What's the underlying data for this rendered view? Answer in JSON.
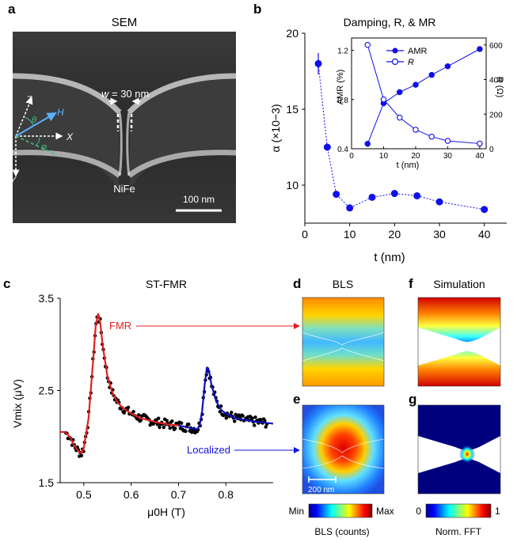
{
  "panel_labels": {
    "a": "a",
    "b": "b",
    "c": "c",
    "d": "d",
    "e": "e",
    "f": "f",
    "g": "g"
  },
  "sem": {
    "title": "SEM",
    "width_prefix": "w",
    "width_value": " = 30 nm",
    "axis_z": "Z",
    "axis_x": "X",
    "axis_y": "Y",
    "axis_h": "H",
    "theta": "θ",
    "phi": "φ",
    "material": "NiFe",
    "scale_bar": "100 nm"
  },
  "bls": {
    "title": "BLS",
    "scale_bar": "200 nm"
  },
  "simulation": {
    "title": "Simulation"
  },
  "colorbar_bls": {
    "min": "Min",
    "max": "Max",
    "label": "BLS (counts)"
  },
  "colorbar_sim": {
    "min": "0",
    "max": "1",
    "label": "Norm. FFT"
  },
  "chart_data": [
    {
      "id": "damping",
      "type": "scatter",
      "title": "Damping, R, & MR",
      "xlabel": "t (nm)",
      "ylabel": "α (×10−3)",
      "xlim": [
        0,
        45
      ],
      "ylim": [
        7.5,
        20
      ],
      "xticks": [
        0,
        10,
        20,
        30,
        40
      ],
      "yticks": [
        10,
        15,
        20
      ],
      "x": [
        3,
        5,
        7,
        10,
        15,
        20,
        25,
        30,
        40
      ],
      "y": [
        18.0,
        12.5,
        9.4,
        8.5,
        9.2,
        9.45,
        9.3,
        8.9,
        8.4
      ],
      "error": [
        0.7,
        0,
        0,
        0,
        0,
        0,
        0,
        0,
        0
      ],
      "color": "#1010e8"
    },
    {
      "id": "inset",
      "type": "line",
      "xlabel": "t (nm)",
      "ylabel_left": "AMR (%)",
      "ylabel_right": "R (Ω)",
      "xlim": [
        0,
        42
      ],
      "ylim_left": [
        0.4,
        1.3
      ],
      "ylim_right": [
        0,
        640
      ],
      "xticks": [
        0,
        10,
        20,
        30,
        40
      ],
      "yticks_left": [
        "0.4",
        "0.8",
        "1.2"
      ],
      "yticks_right": [
        "0",
        "200",
        "400",
        "600"
      ],
      "series": [
        {
          "name": "AMR",
          "axis": "left",
          "filled": true,
          "x": [
            5,
            10,
            15,
            20,
            25,
            30,
            40
          ],
          "y": [
            0.44,
            0.77,
            0.86,
            0.92,
            1.0,
            1.07,
            1.21
          ]
        },
        {
          "name": "R",
          "axis": "right",
          "filled": false,
          "x": [
            5,
            10,
            15,
            20,
            25,
            30,
            40
          ],
          "y": [
            600,
            285,
            180,
            110,
            70,
            45,
            30
          ]
        }
      ]
    },
    {
      "id": "stfmr",
      "type": "line",
      "title": "ST-FMR",
      "xlabel": "μ0H (T)",
      "ylabel": "Vmix (μV)",
      "xlim": [
        0.45,
        0.9
      ],
      "ylim": [
        1.5,
        3.5
      ],
      "xticks": [
        "0.5",
        "0.6",
        "0.7",
        "0.8"
      ],
      "yticks": [
        "1.5",
        "2.5",
        "3.5"
      ],
      "annotations": [
        "FMR",
        "Localized"
      ],
      "series": [
        {
          "name": "FMR fit",
          "color": "#e02020",
          "x": [
            0.45,
            0.46,
            0.47,
            0.48,
            0.49,
            0.495,
            0.5,
            0.51,
            0.52,
            0.525,
            0.53,
            0.535,
            0.54,
            0.55,
            0.56,
            0.57,
            0.58,
            0.6,
            0.62,
            0.65,
            0.68,
            0.7
          ],
          "y": [
            2.05,
            2.05,
            2.0,
            1.9,
            1.83,
            1.82,
            1.88,
            2.2,
            2.85,
            3.2,
            3.33,
            3.22,
            2.98,
            2.65,
            2.48,
            2.38,
            2.32,
            2.25,
            2.2,
            2.16,
            2.13,
            2.12
          ]
        },
        {
          "name": "Localized fit",
          "color": "#1010c0",
          "x": [
            0.7,
            0.72,
            0.74,
            0.745,
            0.75,
            0.755,
            0.76,
            0.765,
            0.77,
            0.78,
            0.79,
            0.8,
            0.82,
            0.85,
            0.9
          ],
          "y": [
            2.12,
            2.1,
            2.08,
            2.13,
            2.28,
            2.55,
            2.75,
            2.7,
            2.55,
            2.38,
            2.29,
            2.25,
            2.2,
            2.17,
            2.14
          ]
        }
      ],
      "scatter_note": "black measured points follow the fits with noise"
    }
  ]
}
